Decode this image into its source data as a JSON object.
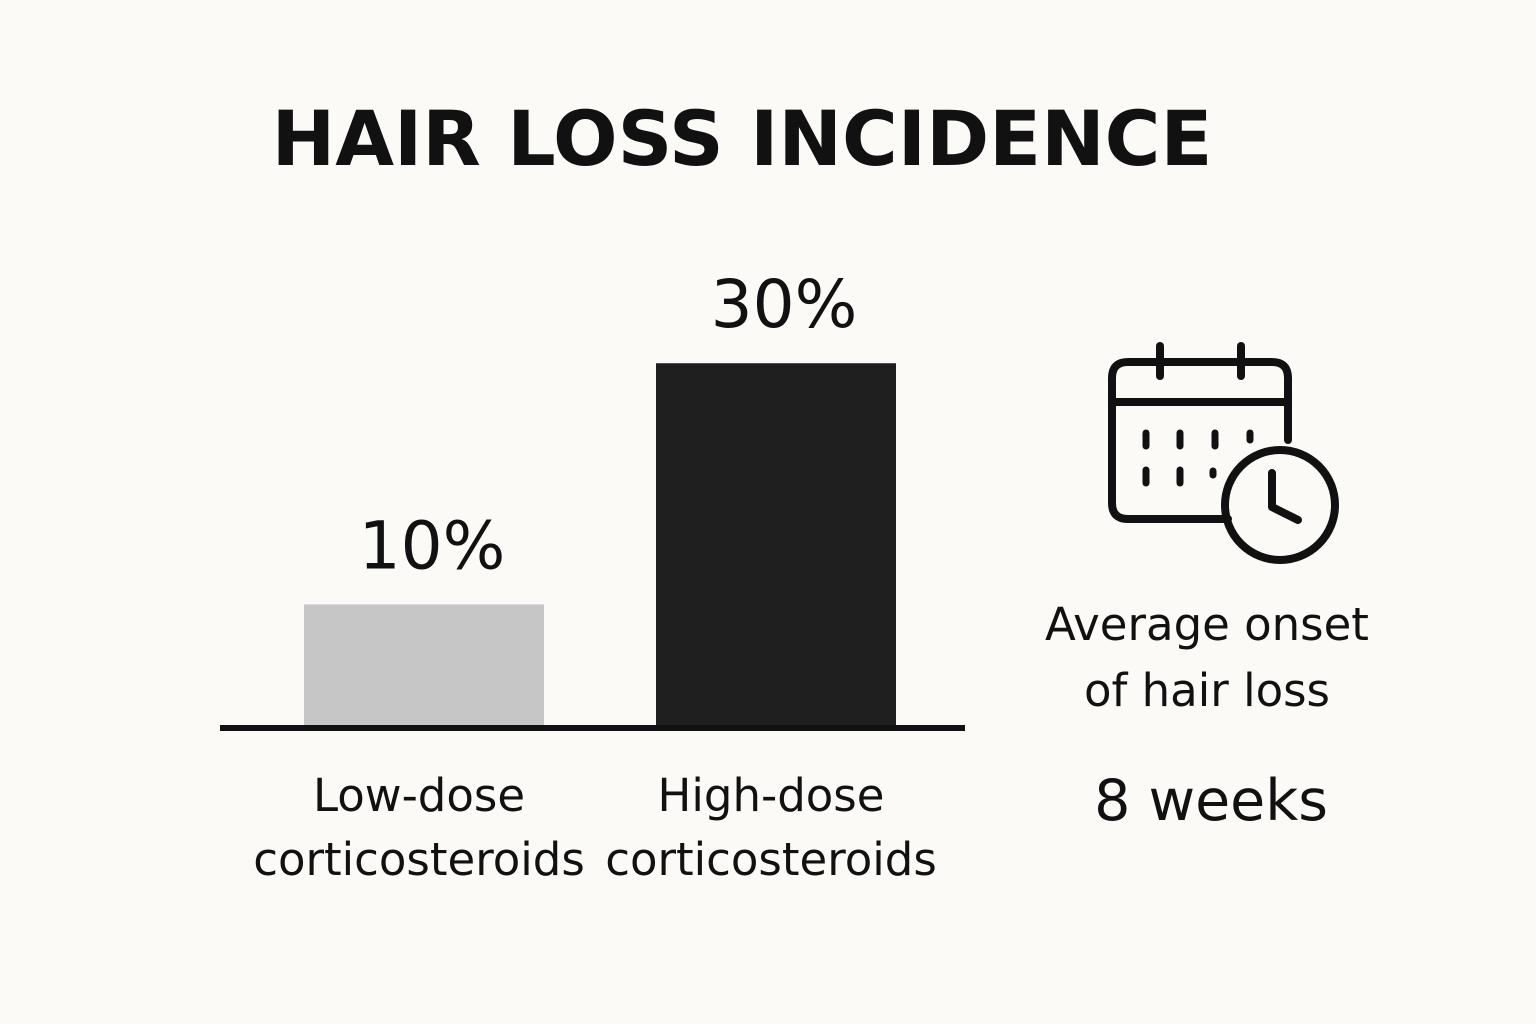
{
  "chart_data": {
    "type": "bar",
    "title": "HAIR LOSS INCIDENCE",
    "categories": [
      [
        "Low-dose",
        "corticosteroids"
      ],
      [
        "High-dose",
        "corticosteroids"
      ]
    ],
    "values": [
      10,
      30
    ],
    "value_labels": [
      "10%",
      "30%"
    ],
    "unit": "%",
    "ylim": [
      0,
      34
    ],
    "colors": [
      "#c6c6c6",
      "#1f1f1f"
    ],
    "grid": false
  },
  "onset": {
    "icon": "calendar-clock-icon",
    "label_lines": [
      "Average onset",
      "of hair loss"
    ],
    "value": "8 weeks"
  },
  "colors": {
    "background": "#fbfaf6",
    "text": "#111111",
    "axis": "#111111"
  }
}
